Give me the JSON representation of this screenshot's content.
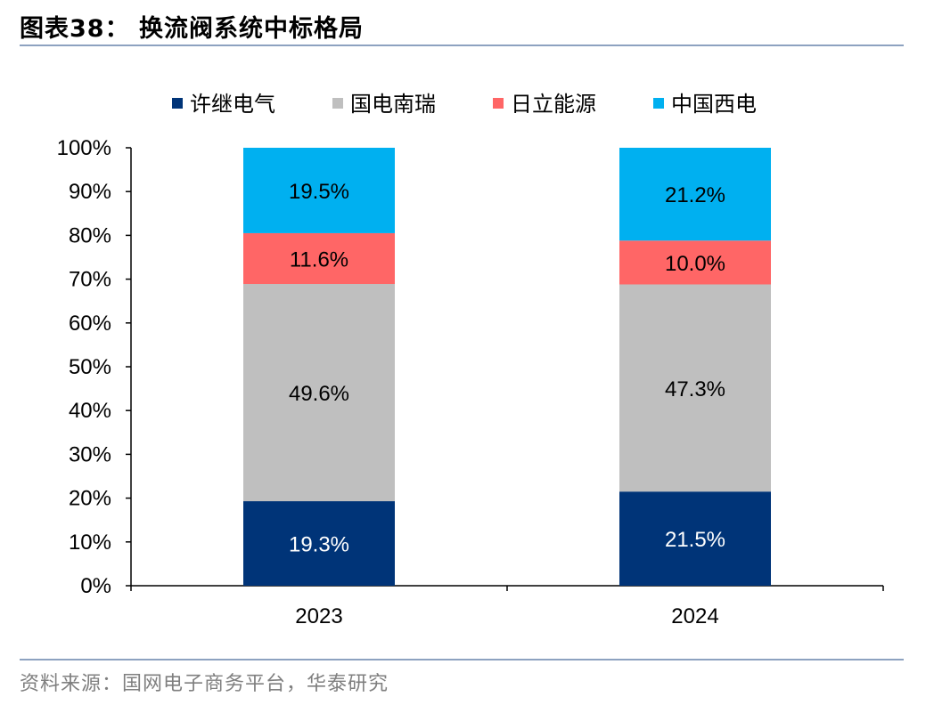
{
  "figure": {
    "title": "图表38：  换流阀系统中标格局",
    "source": "资料来源：国网电子商务平台，华泰研究"
  },
  "chart_data": {
    "type": "bar",
    "stacked": true,
    "percent": true,
    "categories": [
      "2023",
      "2024"
    ],
    "series": [
      {
        "name": "许继电气",
        "color": "#003478",
        "label_color": "#ffffff",
        "values": [
          19.3,
          21.5
        ],
        "labels": [
          "19.3%",
          "21.5%"
        ]
      },
      {
        "name": "国电南瑞",
        "color": "#bfbfbf",
        "label_color": "#000000",
        "values": [
          49.6,
          47.3
        ],
        "labels": [
          "49.6%",
          "47.3%"
        ]
      },
      {
        "name": "日立能源",
        "color": "#ff6666",
        "label_color": "#000000",
        "values": [
          11.6,
          10.0
        ],
        "labels": [
          "11.6%",
          "10.0%"
        ]
      },
      {
        "name": "中国西电",
        "color": "#00b0f0",
        "label_color": "#000000",
        "values": [
          19.5,
          21.2
        ],
        "labels": [
          "19.5%",
          "21.2%"
        ]
      }
    ],
    "ylim": [
      0,
      100
    ],
    "yticks": [
      "0%",
      "10%",
      "20%",
      "30%",
      "40%",
      "50%",
      "60%",
      "70%",
      "80%",
      "90%",
      "100%"
    ],
    "legend_position": "top",
    "grid": false
  }
}
